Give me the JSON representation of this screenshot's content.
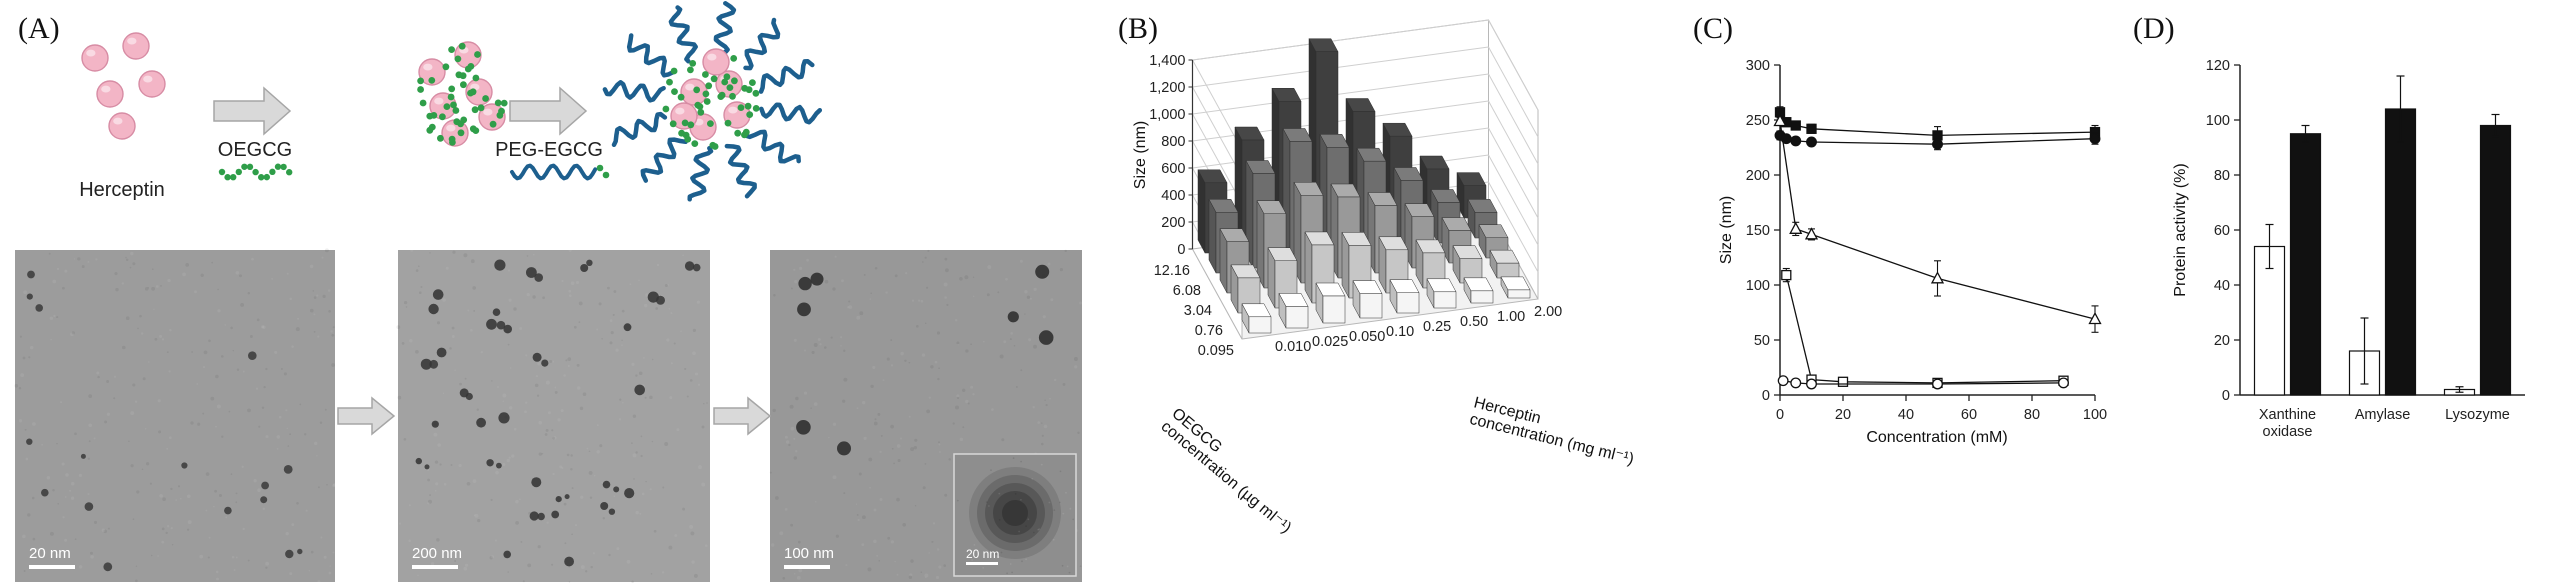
{
  "panels": {
    "a": "(A)",
    "b": "(B)",
    "c": "(C)",
    "d": "(D)"
  },
  "panelA": {
    "schematic": {
      "herceptin_label": "Herceptin",
      "oegcg_label": "OEGCG",
      "peg_egcg_label": "PEG-EGCG"
    },
    "colors": {
      "herceptin_pink": "#f3b5c6",
      "herceptin_edge": "#d78ca4",
      "oegcg_green": "#2f9e49",
      "peg_blue": "#1d5f8e",
      "arrow_fill": "#d9d9d9",
      "arrow_edge": "#a6a6a6",
      "tem_bg_1": "#9c9c9c",
      "tem_bg_2": "#a2a2a2",
      "tem_bg_3": "#989898"
    },
    "tem_images": [
      {
        "scale_bar": "20 nm"
      },
      {
        "scale_bar": "200 nm"
      },
      {
        "scale_bar": "100 nm",
        "inset_scale_bar": "20 nm"
      }
    ]
  },
  "chart_data": [
    {
      "id": "B",
      "type": "bar3d",
      "value_axis_label": "Size (nm)",
      "zlim": [
        0,
        1400
      ],
      "ztick": 200,
      "row_axis_label": "OEGCG concentration (µg ml⁻¹)",
      "col_axis_label": "Herceptin concentration (mg ml⁻¹)",
      "rows": [
        "0.095",
        "0.76",
        "3.04",
        "6.08",
        "12.16"
      ],
      "cols": [
        "0.010",
        "0.025",
        "0.050",
        "0.10",
        "0.25",
        "0.50",
        "1.00",
        "2.00"
      ],
      "row_colors": [
        "#f5f5f5",
        "#c6c6c6",
        "#999999",
        "#6e6e6e",
        "#3f3f3f"
      ],
      "values": [
        [
          120,
          160,
          200,
          180,
          150,
          120,
          90,
          60
        ],
        [
          260,
          350,
          430,
          390,
          320,
          260,
          180,
          110
        ],
        [
          380,
          550,
          650,
          600,
          500,
          380,
          240,
          150
        ],
        [
          450,
          700,
          900,
          820,
          680,
          500,
          300,
          190
        ],
        [
          520,
          800,
          1050,
          1380,
          900,
          680,
          400,
          240
        ]
      ]
    },
    {
      "id": "C",
      "type": "line",
      "xlabel": "Concentration (mM)",
      "ylabel": "Size (nm)",
      "xlim": [
        0,
        100
      ],
      "xtick": 20,
      "ylim": [
        0,
        300
      ],
      "ytick": 50,
      "series": [
        {
          "name": "filled square",
          "marker": "square",
          "fill": "#111111",
          "x": [
            0,
            2,
            5,
            10,
            50,
            100
          ],
          "y": [
            257,
            248,
            245,
            242,
            236,
            239
          ],
          "yerr": [
            5,
            4,
            4,
            4,
            8,
            6
          ]
        },
        {
          "name": "filled circle",
          "marker": "circle",
          "fill": "#111111",
          "x": [
            0,
            2,
            5,
            10,
            50,
            100
          ],
          "y": [
            236,
            233,
            231,
            230,
            228,
            233
          ],
          "yerr": [
            4,
            3,
            3,
            3,
            5,
            5
          ]
        },
        {
          "name": "open triangle",
          "marker": "triangle",
          "fill": "#ffffff",
          "x": [
            0,
            5,
            10,
            50,
            100
          ],
          "y": [
            249,
            151,
            146,
            106,
            69
          ],
          "yerr": [
            4,
            6,
            5,
            16,
            12
          ]
        },
        {
          "name": "open square",
          "marker": "square",
          "fill": "#ffffff",
          "x": [
            2,
            10,
            20,
            50,
            90
          ],
          "y": [
            109,
            14,
            12,
            11,
            13
          ],
          "yerr": [
            6,
            2,
            2,
            2,
            2
          ]
        },
        {
          "name": "open circle",
          "marker": "circle",
          "fill": "#ffffff",
          "x": [
            1,
            5,
            10,
            50,
            90
          ],
          "y": [
            13,
            11,
            10,
            10,
            11
          ],
          "yerr": [
            2,
            2,
            2,
            2,
            2
          ]
        }
      ]
    },
    {
      "id": "D",
      "type": "bar",
      "ylabel": "Protein activity (%)",
      "ylim": [
        0,
        120
      ],
      "ytick": 20,
      "categories": [
        "Xanthine oxidase",
        "Amylase",
        "Lysozyme"
      ],
      "series": [
        {
          "name": "open bars",
          "fill": "#ffffff",
          "values": [
            54,
            16,
            2
          ],
          "yerr": [
            8,
            12,
            1
          ]
        },
        {
          "name": "filled bars",
          "fill": "#111111",
          "values": [
            95,
            104,
            98
          ],
          "yerr": [
            3,
            12,
            4
          ]
        }
      ]
    }
  ]
}
